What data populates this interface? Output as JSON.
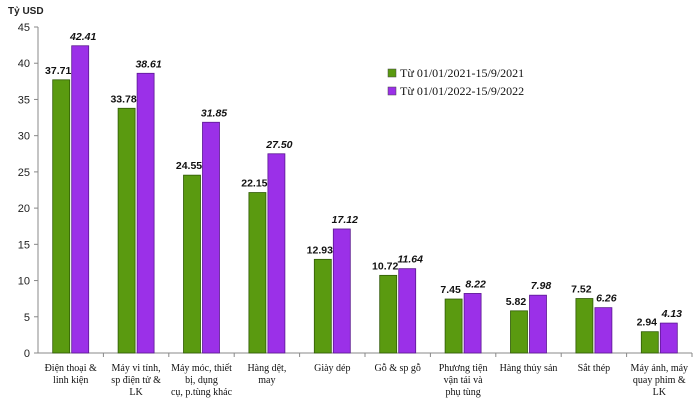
{
  "chart_data": {
    "type": "bar",
    "title": "",
    "ylabel": "Tỷ USD",
    "xlabel": "",
    "ylim": [
      0,
      45
    ],
    "yticks": [
      0,
      5,
      10,
      15,
      20,
      25,
      30,
      35,
      40,
      45
    ],
    "grid": false,
    "legend_position": "top-right",
    "categories": [
      [
        "Điện thoại &",
        "linh kiện"
      ],
      [
        "Máy vi tính,",
        "sp điện tử &",
        "LK"
      ],
      [
        "Máy móc, thiết",
        "bị, dụng",
        "cụ, p.tùng khác"
      ],
      [
        "Hàng dệt,",
        "may"
      ],
      [
        "Giày dép"
      ],
      [
        "Gỗ & sp gỗ"
      ],
      [
        "Phương tiện",
        "vận tải và",
        "phụ tùng"
      ],
      [
        "Hàng thủy sản"
      ],
      [
        "Sắt thép"
      ],
      [
        "Máy ảnh, máy",
        "quay phim &",
        "LK"
      ]
    ],
    "series": [
      {
        "name": "Từ 01/01/2021-15/9/2021",
        "color": "#5a9a10",
        "labels": [
          "37.71",
          "33.78",
          "24.55",
          "22.15",
          "12.93",
          "10.72",
          "7.45",
          "5.82",
          "7.52",
          "2.94"
        ],
        "values": [
          37.71,
          33.78,
          24.55,
          22.15,
          12.93,
          10.72,
          7.45,
          5.82,
          7.52,
          2.94
        ]
      },
      {
        "name": "Từ 01/01/2022-15/9/2022",
        "color": "#9b30e8",
        "labels": [
          "42.41",
          "38.61",
          "31.85",
          "27.50",
          "17.12",
          "11.64",
          "8.22",
          "7.98",
          "6.26",
          "4.13"
        ],
        "values": [
          42.41,
          38.61,
          31.85,
          27.5,
          17.12,
          11.64,
          8.22,
          7.98,
          6.26,
          4.13
        ]
      }
    ]
  }
}
